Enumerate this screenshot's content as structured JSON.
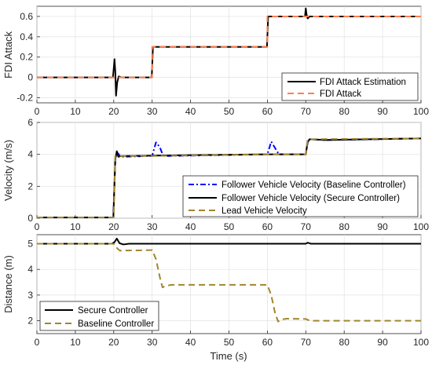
{
  "colors": {
    "estimation": "#000000",
    "attack": "#FF7F50",
    "baseline_velocity": "#0000FF",
    "secure_velocity": "#000000",
    "lead_velocity": "#A0862D",
    "secure_distance": "#000000",
    "baseline_distance": "#A0862D",
    "axis": "#262626"
  },
  "chart_data": [
    {
      "type": "line",
      "ylabel": "FDI Attack",
      "xlabel": "",
      "xlim": [
        0,
        100
      ],
      "ylim": [
        -0.25,
        0.7
      ],
      "xticks": [
        "0",
        "10",
        "20",
        "30",
        "40",
        "50",
        "60",
        "70",
        "80",
        "90",
        "100"
      ],
      "yticks": [
        "-0.2",
        "0",
        "0.2",
        "0.4",
        "0.6"
      ],
      "ytick_values": [
        -0.2,
        0,
        0.2,
        0.4,
        0.6
      ],
      "legend_position": "bottom-right",
      "series": [
        {
          "name": "FDI Attack Estimation",
          "style": "solid",
          "color_key": "estimation",
          "x": [
            0,
            19.8,
            20.2,
            20.4,
            20.6,
            20.9,
            21.3,
            22,
            29.9,
            30.2,
            59.9,
            60.2,
            69.8,
            70.0,
            70.2,
            70.5,
            71,
            100
          ],
          "y": [
            0,
            0,
            0.18,
            0.06,
            -0.18,
            -0.05,
            0.01,
            0,
            0,
            0.3,
            0.3,
            0.6,
            0.6,
            0.68,
            0.62,
            0.58,
            0.6,
            0.6
          ]
        },
        {
          "name": "FDI Attack",
          "style": "dashed",
          "color_key": "attack",
          "x": [
            0,
            30,
            30,
            60,
            60,
            100
          ],
          "y": [
            0,
            0,
            0.3,
            0.3,
            0.6,
            0.6
          ]
        }
      ]
    },
    {
      "type": "line",
      "ylabel": "Velocity (m/s)",
      "xlabel": "",
      "xlim": [
        0,
        100
      ],
      "ylim": [
        0,
        6
      ],
      "xticks": [
        "0",
        "10",
        "20",
        "30",
        "40",
        "50",
        "60",
        "70",
        "80",
        "90",
        "100"
      ],
      "yticks": [
        "0",
        "2",
        "4",
        "6"
      ],
      "ytick_values": [
        0,
        2,
        4,
        6
      ],
      "legend_position": "bottom-right",
      "series": [
        {
          "name": "Follower Vehicle Velocity (Baseline Controller)",
          "style": "dashdot",
          "color_key": "baseline_velocity",
          "x": [
            0,
            19.9,
            20.4,
            20.8,
            21.5,
            22.5,
            30,
            31,
            32,
            32.8,
            34,
            60,
            61,
            62,
            63,
            70,
            70.5,
            71,
            75,
            100
          ],
          "y": [
            0.05,
            0.05,
            3.6,
            4.15,
            3.95,
            3.85,
            3.9,
            4.75,
            4.45,
            3.95,
            3.9,
            4.0,
            4.8,
            4.4,
            4.0,
            4.0,
            4.75,
            4.95,
            4.9,
            5.0
          ]
        },
        {
          "name": "Follower Vehicle Velocity (Secure Controller)",
          "style": "solid",
          "color_key": "secure_velocity",
          "x": [
            0,
            19.9,
            20.4,
            20.8,
            21.2,
            22,
            40,
            60,
            70,
            70.5,
            71,
            75,
            100
          ],
          "y": [
            0.05,
            0.05,
            3.7,
            4.2,
            3.85,
            3.9,
            3.95,
            4.0,
            4.0,
            4.8,
            4.95,
            4.9,
            5.0
          ]
        },
        {
          "name": "Lead Vehicle Velocity",
          "style": "dashed",
          "color_key": "lead_velocity",
          "x": [
            0,
            20,
            20.4,
            30,
            60,
            70,
            70.5,
            100
          ],
          "y": [
            0.05,
            0.05,
            3.9,
            3.9,
            4.0,
            4.0,
            4.95,
            5.0
          ]
        }
      ]
    },
    {
      "type": "line",
      "ylabel": "Distance (m)",
      "xlabel": "Time (s)",
      "xlim": [
        0,
        100
      ],
      "ylim": [
        1.5,
        5.35
      ],
      "xticks": [
        "0",
        "10",
        "20",
        "30",
        "40",
        "50",
        "60",
        "70",
        "80",
        "90",
        "100"
      ],
      "yticks": [
        "2",
        "3",
        "4",
        "5"
      ],
      "ytick_values": [
        2,
        3,
        4,
        5
      ],
      "legend_position": "bottom-left",
      "series": [
        {
          "name": "Secure Controller",
          "style": "solid",
          "color_key": "secure_distance",
          "x": [
            0,
            19.5,
            20.2,
            20.8,
            21.5,
            22.5,
            24,
            60,
            70,
            70.5,
            71.3,
            100
          ],
          "y": [
            5.0,
            5.0,
            5.06,
            5.2,
            5.02,
            4.97,
            5.0,
            5.0,
            5.0,
            5.04,
            5.0,
            5.0
          ]
        },
        {
          "name": "Baseline Controller",
          "style": "dashed",
          "color_key": "baseline_distance",
          "x": [
            0,
            19.5,
            20.3,
            20.9,
            21.6,
            30,
            31,
            32,
            32.7,
            33.5,
            35,
            60,
            61,
            62,
            62.8,
            63.6,
            65,
            70,
            70.6,
            71.3,
            73,
            100
          ],
          "y": [
            5.0,
            5.0,
            4.98,
            4.82,
            4.73,
            4.75,
            4.4,
            3.7,
            3.3,
            3.35,
            3.4,
            3.4,
            3.0,
            2.3,
            1.97,
            2.05,
            2.08,
            2.07,
            2.03,
            2.0,
            2.0,
            2.0
          ]
        }
      ]
    }
  ]
}
